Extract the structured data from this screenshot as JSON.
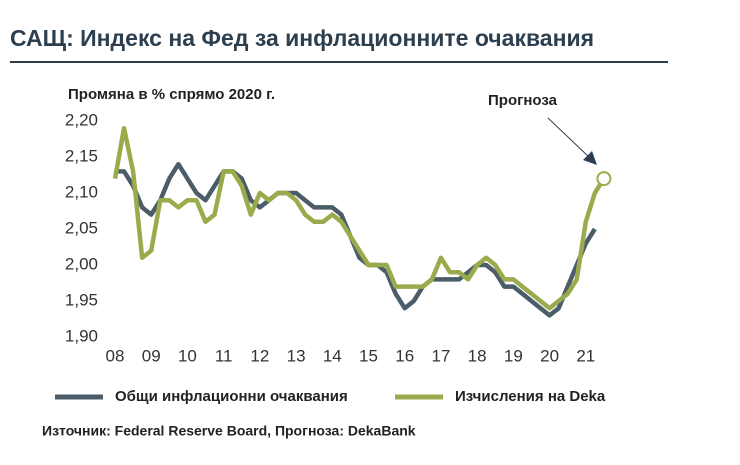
{
  "chart_data": {
    "type": "line",
    "title": "САЩ: Индекс на Фед за инфлационните очаквания",
    "subtitle": "Промяна в % спрямо 2020 г.",
    "annotation": "Прогноза",
    "source": "Източник: Federal Reserve Board, Прогноза: DekaBank",
    "x": [
      2008,
      2008.25,
      2008.5,
      2008.75,
      2009,
      2009.25,
      2009.5,
      2009.75,
      2010,
      2010.25,
      2010.5,
      2010.75,
      2011,
      2011.25,
      2011.5,
      2011.75,
      2012,
      2012.25,
      2012.5,
      2012.75,
      2013,
      2013.25,
      2013.5,
      2013.75,
      2014,
      2014.25,
      2014.5,
      2014.75,
      2015,
      2015.25,
      2015.5,
      2015.75,
      2016,
      2016.25,
      2016.5,
      2016.75,
      2017,
      2017.25,
      2017.5,
      2017.75,
      2018,
      2018.25,
      2018.5,
      2018.75,
      2019,
      2019.25,
      2019.5,
      2019.75,
      2020,
      2020.25,
      2020.5,
      2020.75,
      2021,
      2021.25,
      2021.5
    ],
    "series": [
      {
        "name": "Общи инфлационни очаквания",
        "color": "#4b5d68",
        "values": [
          2.13,
          2.13,
          2.11,
          2.08,
          2.07,
          2.09,
          2.12,
          2.14,
          2.12,
          2.1,
          2.09,
          2.11,
          2.13,
          2.13,
          2.12,
          2.09,
          2.08,
          2.09,
          2.1,
          2.1,
          2.1,
          2.09,
          2.08,
          2.08,
          2.08,
          2.07,
          2.04,
          2.01,
          2.0,
          2.0,
          1.99,
          1.96,
          1.94,
          1.95,
          1.97,
          1.98,
          1.98,
          1.98,
          1.98,
          1.99,
          2.0,
          2.0,
          1.99,
          1.97,
          1.97,
          1.96,
          1.95,
          1.94,
          1.93,
          1.94,
          1.97,
          2.0,
          2.03,
          2.05,
          null
        ]
      },
      {
        "name": "Изчисления на Deka",
        "color": "#9aab4c",
        "values": [
          2.12,
          2.19,
          2.13,
          2.01,
          2.02,
          2.09,
          2.09,
          2.08,
          2.09,
          2.09,
          2.06,
          2.07,
          2.13,
          2.13,
          2.11,
          2.07,
          2.1,
          2.09,
          2.1,
          2.1,
          2.09,
          2.07,
          2.06,
          2.06,
          2.07,
          2.06,
          2.04,
          2.02,
          2.0,
          2.0,
          2.0,
          1.97,
          1.97,
          1.97,
          1.97,
          1.98,
          2.01,
          1.99,
          1.99,
          1.98,
          2.0,
          2.01,
          2.0,
          1.98,
          1.98,
          1.97,
          1.96,
          1.95,
          1.94,
          1.95,
          1.96,
          1.98,
          2.06,
          2.1,
          2.12
        ]
      }
    ],
    "xlim": [
      2008,
      2022
    ],
    "xticks": [
      {
        "value": 2008,
        "label": "08"
      },
      {
        "value": 2009,
        "label": "09"
      },
      {
        "value": 2010,
        "label": "10"
      },
      {
        "value": 2011,
        "label": "11"
      },
      {
        "value": 2012,
        "label": "12"
      },
      {
        "value": 2013,
        "label": "13"
      },
      {
        "value": 2014,
        "label": "14"
      },
      {
        "value": 2015,
        "label": "15"
      },
      {
        "value": 2016,
        "label": "16"
      },
      {
        "value": 2017,
        "label": "17"
      },
      {
        "value": 2018,
        "label": "18"
      },
      {
        "value": 2019,
        "label": "19"
      },
      {
        "value": 2020,
        "label": "20"
      },
      {
        "value": 2021,
        "label": "21"
      }
    ],
    "ylim": [
      1.9,
      2.2
    ],
    "yticks": [
      {
        "value": 1.9,
        "label": "1,90"
      },
      {
        "value": 1.95,
        "label": "1,95"
      },
      {
        "value": 2.0,
        "label": "2,00"
      },
      {
        "value": 2.05,
        "label": "2,05"
      },
      {
        "value": 2.1,
        "label": "2,10"
      },
      {
        "value": 2.15,
        "label": "2,15"
      },
      {
        "value": 2.2,
        "label": "2,20"
      }
    ],
    "grid": false
  }
}
